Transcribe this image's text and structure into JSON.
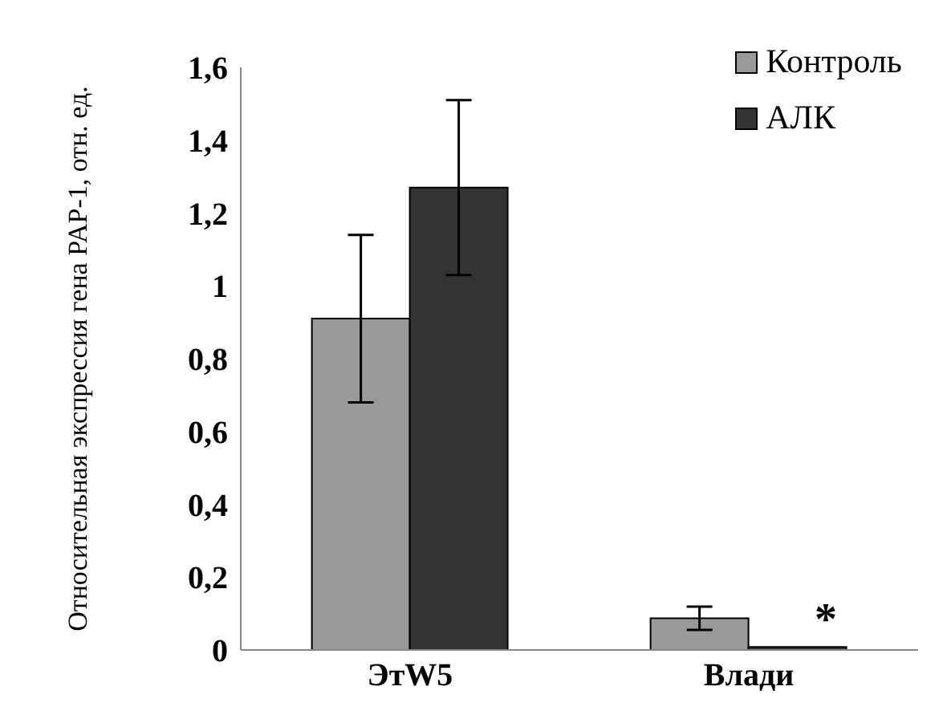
{
  "chart_data": {
    "type": "bar",
    "ylabel": "Относительная экспрессия гена PAP-1, отн. ед.",
    "categories": [
      "ЭтW5",
      "Влади"
    ],
    "series": [
      {
        "name": "Контроль",
        "color": "#999999",
        "values": [
          0.91,
          0.087
        ],
        "errors": [
          0.23,
          0.032
        ]
      },
      {
        "name": "АЛК",
        "color": "#333333",
        "values": [
          1.27,
          0.008
        ],
        "errors": [
          0.24,
          null
        ]
      }
    ],
    "ylim": [
      0,
      1.6
    ],
    "yticks": [
      0,
      {
        "value": 0.2,
        "label": "0,2"
      },
      {
        "value": 0.4,
        "label": "0,4"
      },
      {
        "value": 0.6,
        "label": "0,6"
      },
      {
        "value": 0.8,
        "label": "0,8"
      },
      1,
      {
        "value": 1.2,
        "label": "1,2"
      },
      {
        "value": 1.4,
        "label": "1,4"
      },
      {
        "value": 1.6,
        "label": "1,6"
      }
    ],
    "grid": false,
    "legend": "top right",
    "annotations": [
      {
        "text": "*",
        "x": "Влади",
        "y": 0.07
      }
    ]
  }
}
